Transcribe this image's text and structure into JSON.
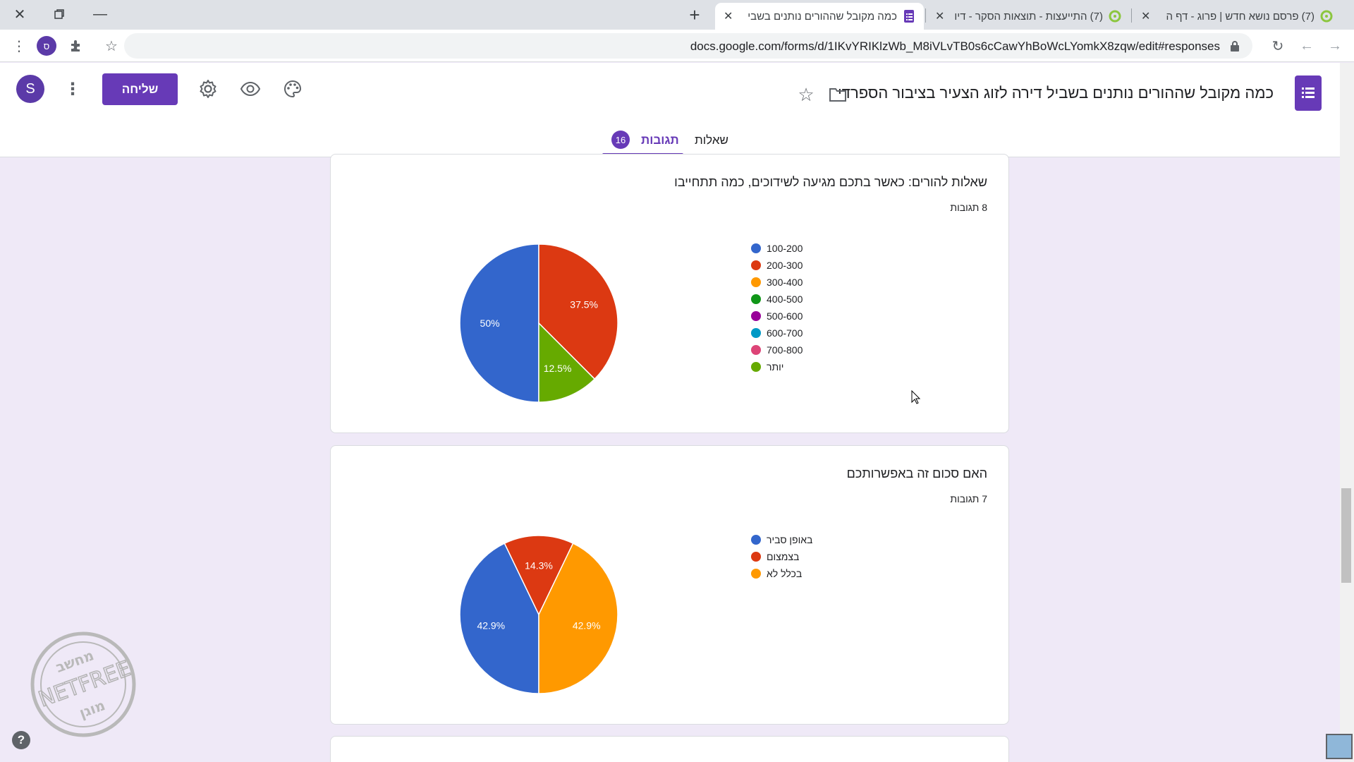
{
  "browser": {
    "tabs": [
      {
        "title": "(7) פרסם נושא חדש | פרוג - דף ה",
        "active": false
      },
      {
        "title": "(7) התייעצות - תוצאות הסקר - דיו",
        "active": false
      },
      {
        "title": "כמה מקובל שההורים נותנים בשבי",
        "active": true
      }
    ],
    "url": "docs.google.com/forms/d/1IKvYRIKlzWb_M8iVLvTB0s6cCawYhBoWcLYomkX8zqw/edit#responses",
    "profile_initial": "ס"
  },
  "form": {
    "title": "כמה מקובל שההורים נותנים בשביל דירה לזוג הצעיר בציבור הספרדי",
    "send_label": "שליחה",
    "avatar_initial": "S",
    "tab_questions": "שאלות",
    "tab_responses": "תגובות",
    "responses_count": "16"
  },
  "cards": [
    {
      "title": "שאלות להורים: כאשר בתכם מגיעה לשידוכים, כמה תתחייבו",
      "count": "8 תגובות",
      "legend": [
        "100-200",
        "200-300",
        "300-400",
        "400-500",
        "500-600",
        "600-700",
        "700-800",
        "יותר"
      ],
      "legend_colors": [
        "#3366cc",
        "#dc3912",
        "#ff9900",
        "#109618",
        "#990099",
        "#0099c6",
        "#dd4477",
        "#66aa00"
      ]
    },
    {
      "title": "האם סכום זה באפשרותכם",
      "count": "7 תגובות",
      "legend": [
        "באופן סביר",
        "בצמצום",
        "בכלל לא"
      ],
      "legend_colors": [
        "#3366cc",
        "#dc3912",
        "#ff9900"
      ]
    }
  ],
  "chart_data": [
    {
      "type": "pie",
      "title": "שאלות להורים: כאשר בתכם מגיעה לשידוכים, כמה תתחייבו",
      "categories": [
        "100-200",
        "200-300",
        "300-400",
        "400-500",
        "500-600",
        "600-700",
        "700-800",
        "יותר"
      ],
      "values": [
        50,
        37.5,
        0,
        0,
        0,
        0,
        0,
        12.5
      ],
      "labels": [
        "50%",
        "37.5%",
        "",
        "",
        "",
        "",
        "",
        "12.5%"
      ],
      "colors": [
        "#3366cc",
        "#dc3912",
        "#ff9900",
        "#109618",
        "#990099",
        "#0099c6",
        "#dd4477",
        "#66aa00"
      ],
      "legend_position": "right"
    },
    {
      "type": "pie",
      "title": "האם סכום זה באפשרותכם",
      "categories": [
        "באופן סביר",
        "בצמצום",
        "בכלל לא"
      ],
      "values": [
        42.9,
        14.3,
        42.9
      ],
      "labels": [
        "42.9%",
        "14.3%",
        "42.9%"
      ],
      "colors": [
        "#3366cc",
        "#dc3912",
        "#ff9900"
      ],
      "legend_position": "right"
    }
  ],
  "watermark": {
    "text": "NETFREE",
    "top_text": "מחשב",
    "bottom_text": "מוגן"
  }
}
